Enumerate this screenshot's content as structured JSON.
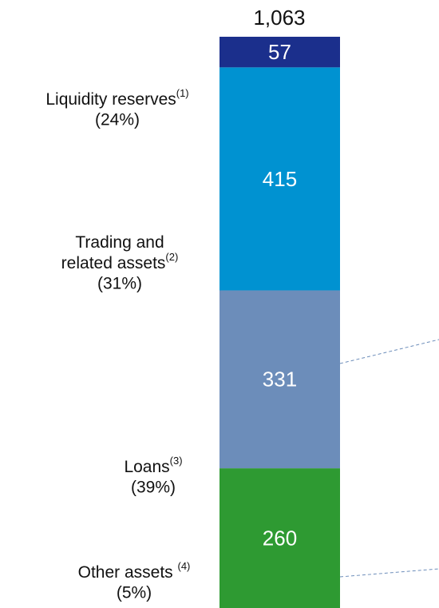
{
  "chart_data": {
    "type": "stacked-bar",
    "total": {
      "value": 1063,
      "label": "1,063"
    },
    "series": [
      {
        "name": [
          "Liquidity reserves"
        ],
        "note": "(1)",
        "share_label": "(24%)",
        "color": "#2e9a32",
        "values": [
          260
        ]
      },
      {
        "name": [
          "Trading and",
          "related assets"
        ],
        "note": "(2)",
        "share_label": "(31%)",
        "color": "#6c8dba",
        "values": [
          331
        ]
      },
      {
        "name": [
          "Loans"
        ],
        "note": "(3)",
        "share_label": "(39%)",
        "color": "#0092d1",
        "values": [
          415
        ]
      },
      {
        "name": [
          "Other assets "
        ],
        "note": "(4)",
        "share_label": "(5%)",
        "color": "#1b2f8c",
        "values": [
          57
        ]
      }
    ]
  }
}
